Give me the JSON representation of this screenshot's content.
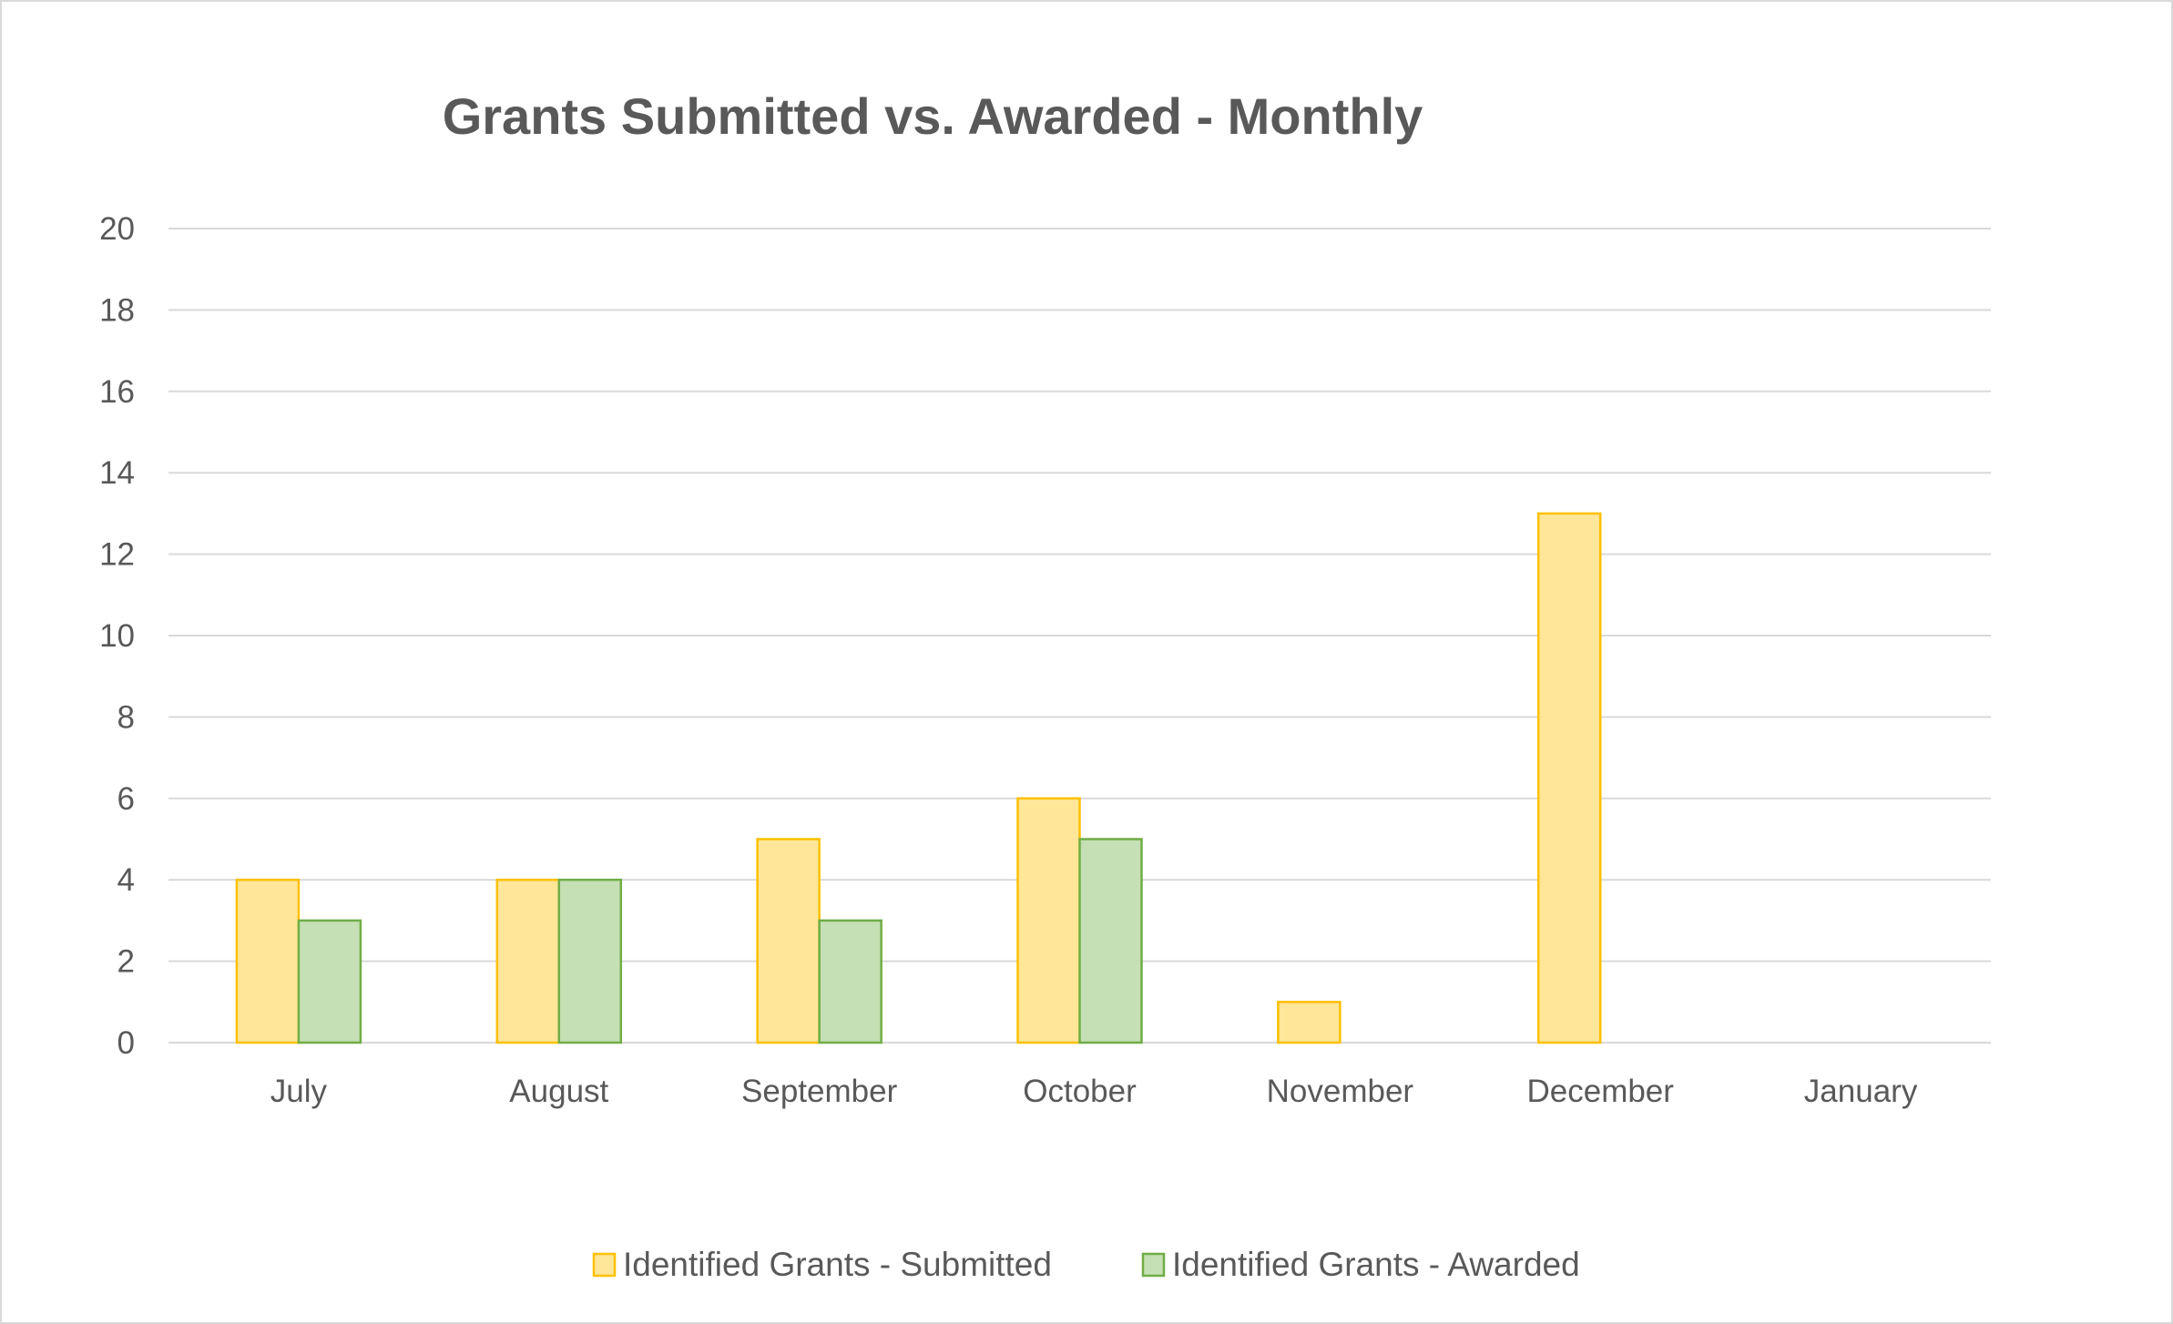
{
  "chart_data": {
    "type": "bar",
    "title": "Grants Submitted vs. Awarded - Monthly",
    "xlabel": "",
    "ylabel": "",
    "categories": [
      "July",
      "August",
      "September",
      "October",
      "November",
      "December",
      "January"
    ],
    "series": [
      {
        "name": "Identified Grants - Submitted",
        "values": [
          4,
          4,
          5,
          6,
          1,
          13,
          0
        ],
        "fill": "#FFE699",
        "stroke": "#FFC000"
      },
      {
        "name": "Identified Grants - Awarded",
        "values": [
          3,
          4,
          3,
          5,
          0,
          0,
          0
        ],
        "fill": "#C5E0B4",
        "stroke": "#70AD47"
      }
    ],
    "ylim": [
      0,
      20
    ],
    "yticks": [
      "0",
      "2",
      "4",
      "6",
      "8",
      "10",
      "12",
      "14",
      "16",
      "18",
      "20"
    ],
    "grid": true,
    "grid_color": "#D9D9D9",
    "legend_position": "bottom"
  }
}
